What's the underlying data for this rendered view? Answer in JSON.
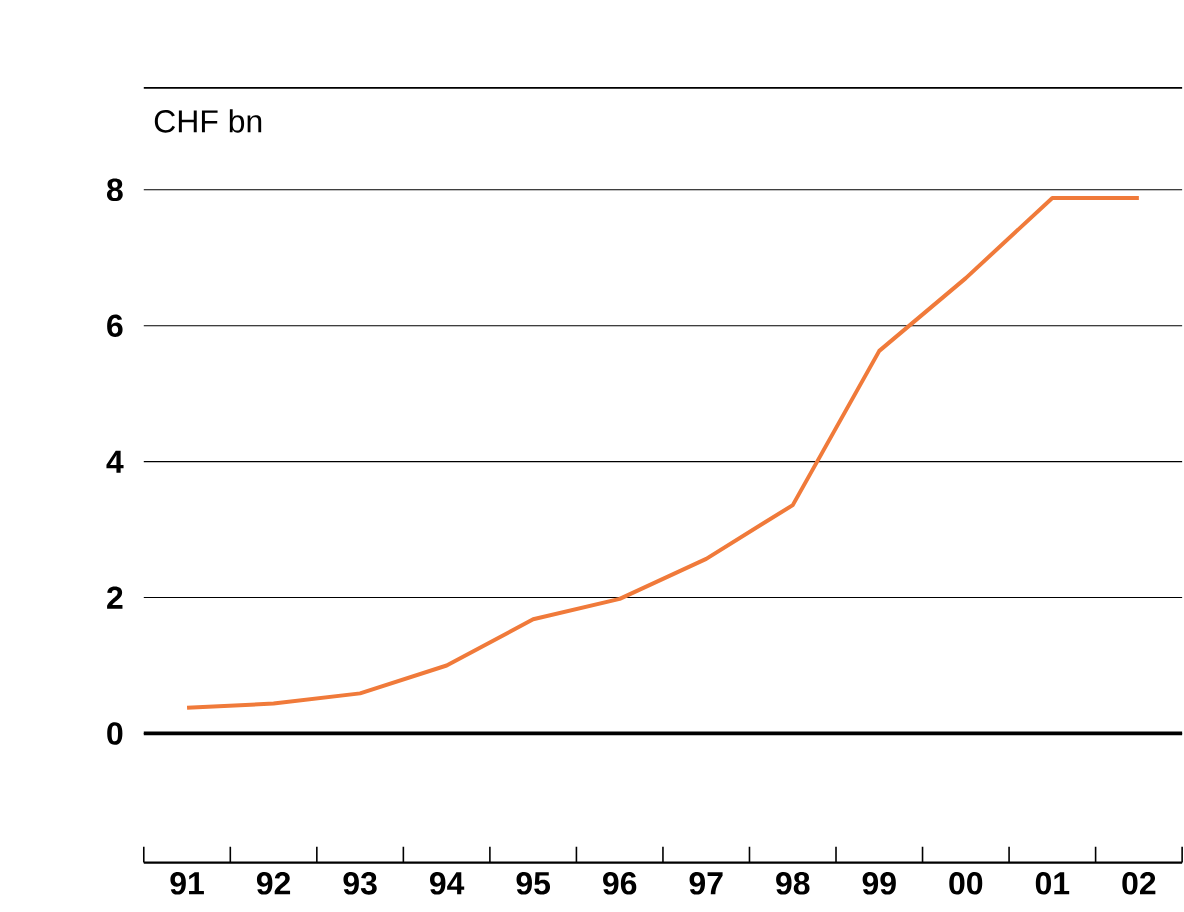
{
  "chart_data": {
    "type": "line",
    "ylabel": "CHF bn",
    "categories": [
      "91",
      "92",
      "93",
      "94",
      "95",
      "96",
      "97",
      "98",
      "99",
      "00",
      "01",
      "02"
    ],
    "series": [
      {
        "color": "#f07a3a",
        "values": [
          0.38,
          0.44,
          0.59,
          1.0,
          1.68,
          1.98,
          2.57,
          3.36,
          5.63,
          6.7,
          7.88,
          7.88
        ]
      }
    ],
    "ylim": [
      -1.9,
      9.5
    ],
    "yticks": [
      0,
      2,
      4,
      6,
      8
    ],
    "grid": "y",
    "marker": "none",
    "line_style": "solid",
    "ref_lines": [
      {
        "axis": "y",
        "value": 0,
        "color": "#000000"
      }
    ]
  }
}
